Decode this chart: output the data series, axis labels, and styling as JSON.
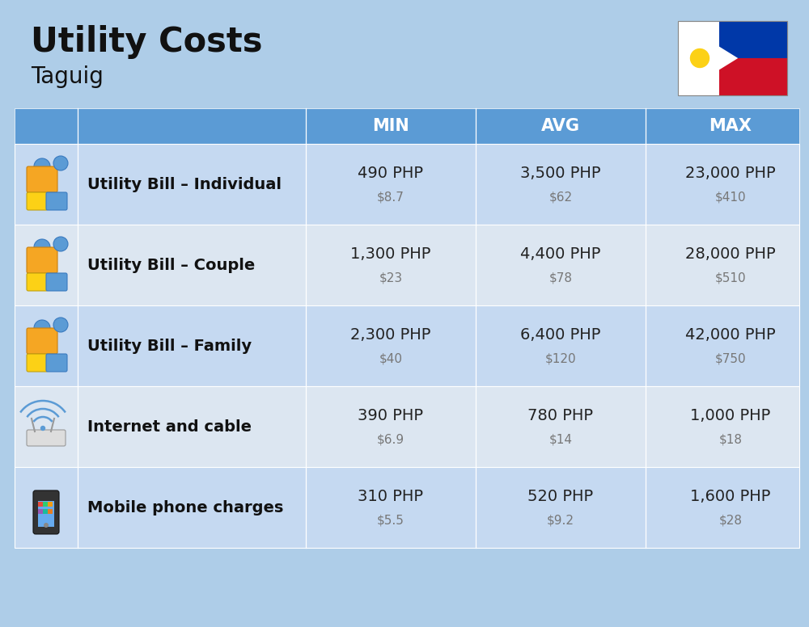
{
  "title": "Utility Costs",
  "subtitle": "Taguig",
  "background_color": "#aecde8",
  "header_color": "#5b9bd5",
  "header_text_color": "#ffffff",
  "row_color_odd": "#c5d9f1",
  "row_color_even": "#dce6f1",
  "col_headers": [
    "MIN",
    "AVG",
    "MAX"
  ],
  "rows": [
    {
      "label": "Utility Bill – Individual",
      "icon": "utility",
      "min_php": "490 PHP",
      "min_usd": "$8.7",
      "avg_php": "3,500 PHP",
      "avg_usd": "$62",
      "max_php": "23,000 PHP",
      "max_usd": "$410"
    },
    {
      "label": "Utility Bill – Couple",
      "icon": "utility",
      "min_php": "1,300 PHP",
      "min_usd": "$23",
      "avg_php": "4,400 PHP",
      "avg_usd": "$78",
      "max_php": "28,000 PHP",
      "max_usd": "$510"
    },
    {
      "label": "Utility Bill – Family",
      "icon": "utility",
      "min_php": "2,300 PHP",
      "min_usd": "$40",
      "avg_php": "6,400 PHP",
      "avg_usd": "$120",
      "max_php": "42,000 PHP",
      "max_usd": "$750"
    },
    {
      "label": "Internet and cable",
      "icon": "internet",
      "min_php": "390 PHP",
      "min_usd": "$6.9",
      "avg_php": "780 PHP",
      "avg_usd": "$14",
      "max_php": "1,000 PHP",
      "max_usd": "$18"
    },
    {
      "label": "Mobile phone charges",
      "icon": "mobile",
      "min_php": "310 PHP",
      "min_usd": "$5.5",
      "avg_php": "520 PHP",
      "avg_usd": "$9.2",
      "max_php": "1,600 PHP",
      "max_usd": "$28"
    }
  ],
  "title_fontsize": 30,
  "subtitle_fontsize": 20,
  "header_fontsize": 15,
  "label_fontsize": 14,
  "value_fontsize": 14,
  "usd_fontsize": 11,
  "flag_blue": "#0038a8",
  "flag_red": "#ce1126",
  "flag_white": "#ffffff",
  "flag_yellow": "#fcd116"
}
